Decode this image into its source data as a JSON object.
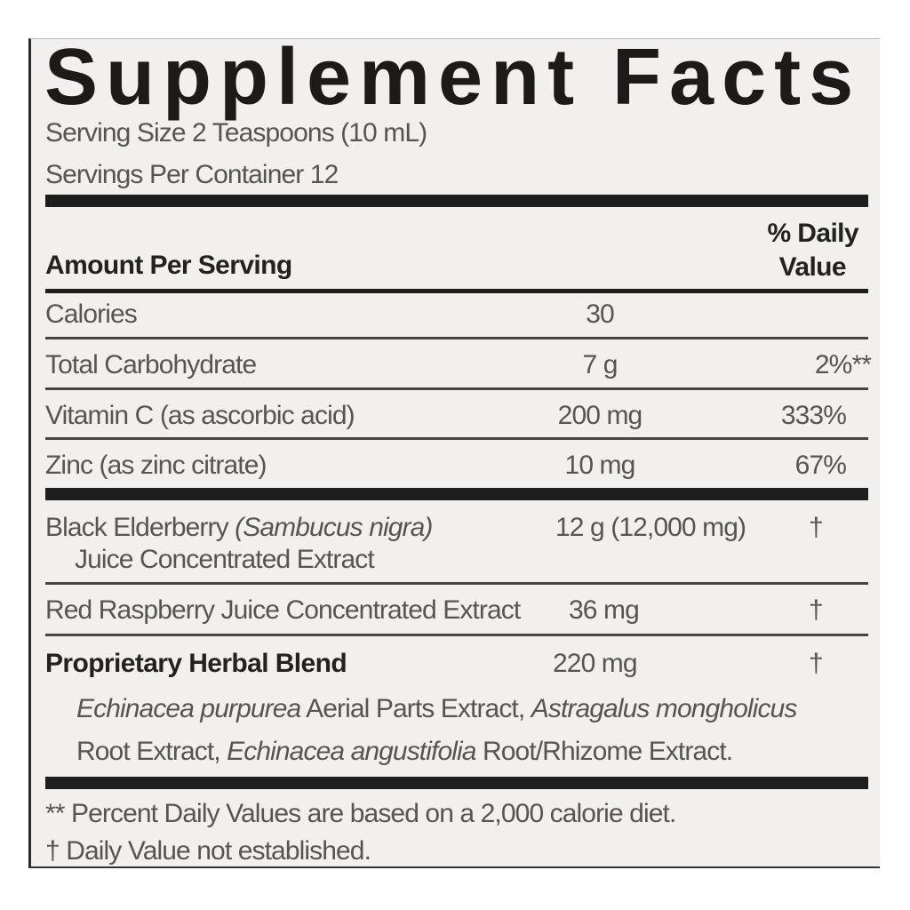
{
  "title": "Supplement Facts",
  "serving_size": "Serving Size 2 Teaspoons (10 mL)",
  "servings_per_container": "Servings Per Container 12",
  "header": {
    "amount_per_serving": "Amount Per Serving",
    "daily_value_line1": "% Daily",
    "daily_value_line2": "Value"
  },
  "rows": [
    {
      "name": "Calories",
      "amount": "30",
      "dv": ""
    },
    {
      "name": "Total Carbohydrate",
      "amount": "7 g",
      "dv": "2%**"
    },
    {
      "name": "Vitamin C (as ascorbic acid)",
      "amount": "200 mg",
      "dv": "333%"
    },
    {
      "name": "Zinc (as zinc citrate)",
      "amount": "10 mg",
      "dv": "67%"
    }
  ],
  "ingredients": [
    {
      "name": "Black Elderberry",
      "latin": "(Sambucus nigra)",
      "name_line2": "Juice Concentrated Extract",
      "amount": "12 g (12,000 mg)",
      "dv": "†"
    },
    {
      "name": "Red Raspberry Juice Concentrated Extract",
      "amount": "36 mg",
      "dv": "†"
    },
    {
      "name": "Proprietary Herbal Blend",
      "amount": "220 mg",
      "dv": "†"
    }
  ],
  "blend": {
    "p1_italic": "Echinacea purpurea",
    "p1_text": " Aerial Parts Extract, ",
    "p1_italic2": "Astragalus mongholicus",
    "p2_text": "Root Extract, ",
    "p2_italic": "Echinacea angustifolia",
    "p2_text2": " Root/Rhizome Extract."
  },
  "footnotes": [
    "** Percent Daily Values are based on a 2,000 calorie diet.",
    "† Daily Value not established."
  ]
}
